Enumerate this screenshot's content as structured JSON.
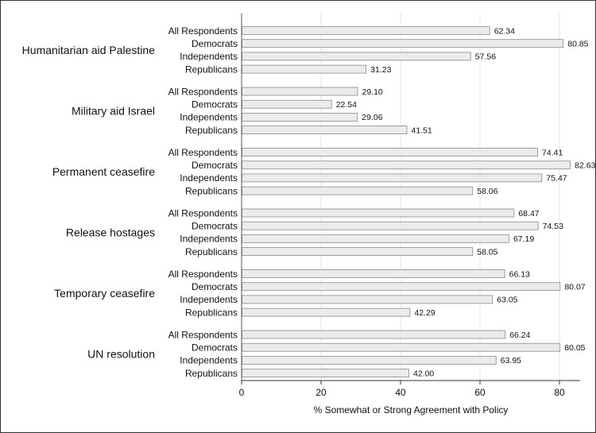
{
  "chart_data": {
    "type": "bar",
    "orientation": "horizontal",
    "xlabel": "% Somewhat or Strong Agreement with Policy",
    "ylabel": "",
    "xlim": [
      0,
      85
    ],
    "xticks": [
      0,
      20,
      40,
      60,
      80
    ],
    "grid": true,
    "bar_color": "#ebebeb",
    "bar_edge_color": "#8a8a8a",
    "grid_color": "#e3e3e3",
    "groups": [
      {
        "name": "Humanitarian aid Palestine",
        "bars": [
          {
            "category": "All Respondents",
            "value": 62.34,
            "label": "62.34"
          },
          {
            "category": "Democrats",
            "value": 80.85,
            "label": "80.85"
          },
          {
            "category": "Independents",
            "value": 57.56,
            "label": "57.56"
          },
          {
            "category": "Republicans",
            "value": 31.23,
            "label": "31.23"
          }
        ]
      },
      {
        "name": "Military aid Israel",
        "bars": [
          {
            "category": "All Respondents",
            "value": 29.1,
            "label": "29.10"
          },
          {
            "category": "Democrats",
            "value": 22.54,
            "label": "22.54"
          },
          {
            "category": "Independents",
            "value": 29.06,
            "label": "29.06"
          },
          {
            "category": "Republicans",
            "value": 41.51,
            "label": "41.51"
          }
        ]
      },
      {
        "name": "Permanent ceasefire",
        "bars": [
          {
            "category": "All Respondents",
            "value": 74.41,
            "label": "74.41"
          },
          {
            "category": "Democrats",
            "value": 82.63,
            "label": "82.63"
          },
          {
            "category": "Independents",
            "value": 75.47,
            "label": "75.47"
          },
          {
            "category": "Republicans",
            "value": 58.06,
            "label": "58.06"
          }
        ]
      },
      {
        "name": "Release hostages",
        "bars": [
          {
            "category": "All Respondents",
            "value": 68.47,
            "label": "68.47"
          },
          {
            "category": "Democrats",
            "value": 74.53,
            "label": "74.53"
          },
          {
            "category": "Independents",
            "value": 67.19,
            "label": "67.19"
          },
          {
            "category": "Republicans",
            "value": 58.05,
            "label": "58.05"
          }
        ]
      },
      {
        "name": "Temporary ceasefire",
        "bars": [
          {
            "category": "All Respondents",
            "value": 66.13,
            "label": "66.13"
          },
          {
            "category": "Democrats",
            "value": 80.07,
            "label": "80.07"
          },
          {
            "category": "Independents",
            "value": 63.05,
            "label": "63.05"
          },
          {
            "category": "Republicans",
            "value": 42.29,
            "label": "42.29"
          }
        ]
      },
      {
        "name": "UN resolution",
        "bars": [
          {
            "category": "All Respondents",
            "value": 66.24,
            "label": "66.24"
          },
          {
            "category": "Democrats",
            "value": 80.05,
            "label": "80.05"
          },
          {
            "category": "Independents",
            "value": 63.95,
            "label": "63.95"
          },
          {
            "category": "Republicans",
            "value": 42.0,
            "label": "42.00"
          }
        ]
      }
    ]
  }
}
